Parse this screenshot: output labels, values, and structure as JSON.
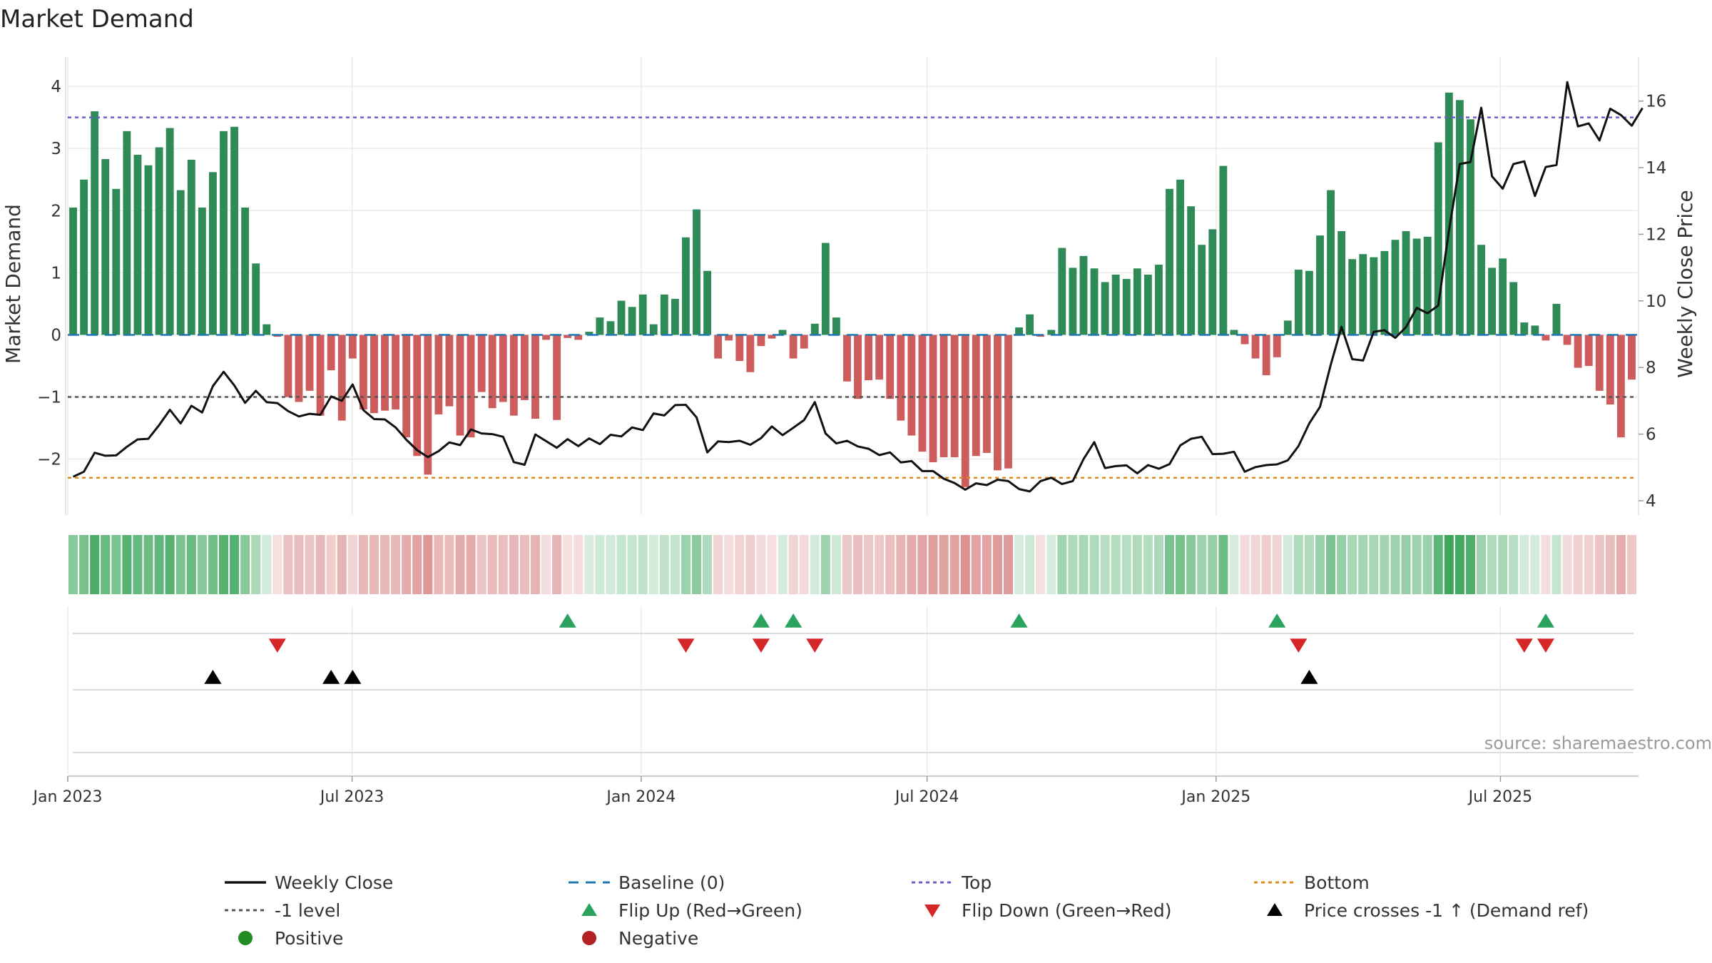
{
  "chart_data": {
    "type": "bar+line",
    "title": "Market Demand",
    "ylabel_left": "Market Demand",
    "ylabel_right": "Weekly Close Price",
    "source": "source: sharemaestro.com",
    "y_left": {
      "min": -2.9,
      "max": 4.3,
      "ticks": [
        4,
        3,
        2,
        1,
        0,
        -1,
        -2
      ],
      "tick_labels": [
        "4",
        "3",
        "2",
        "1",
        "0",
        "−1",
        "−2"
      ]
    },
    "y_right": {
      "min": 3.57,
      "max": 17.0,
      "ticks": [
        16,
        14,
        12,
        10,
        8,
        6,
        4
      ],
      "tick_labels": [
        "16",
        "14",
        "12",
        "10",
        "8",
        "6",
        "4"
      ]
    },
    "x_dates": {
      "start": "2023-01-01",
      "end": "2025-09-26"
    },
    "x_ticks": [
      {
        "label": "Jan 2023",
        "date": "2023-01-01"
      },
      {
        "label": "Jul 2023",
        "date": "2023-07-01"
      },
      {
        "label": "Jan 2024",
        "date": "2024-01-01"
      },
      {
        "label": "Jul 2024",
        "date": "2024-07-01"
      },
      {
        "label": "Jan 2025",
        "date": "2025-01-01"
      },
      {
        "label": "Jul 2025",
        "date": "2025-07-01"
      }
    ],
    "reference_lines": {
      "top": 3.5,
      "bottom": -2.3,
      "minus_one": -1,
      "baseline": 0
    },
    "demand": [
      2.05,
      2.5,
      3.6,
      2.83,
      2.35,
      3.28,
      2.9,
      2.73,
      3.02,
      3.33,
      2.33,
      2.82,
      2.05,
      2.62,
      3.28,
      3.35,
      2.05,
      1.15,
      0.17,
      -0.03,
      -1.0,
      -1.08,
      -0.9,
      -1.3,
      -0.57,
      -1.38,
      -0.38,
      -1.2,
      -1.26,
      -1.22,
      -1.2,
      -1.65,
      -1.95,
      -2.25,
      -1.28,
      -1.15,
      -1.62,
      -1.65,
      -0.92,
      -1.18,
      -1.08,
      -1.3,
      -1.05,
      -1.35,
      -0.08,
      -1.37,
      -0.05,
      -0.08,
      0.05,
      0.28,
      0.22,
      0.55,
      0.45,
      0.65,
      0.17,
      0.65,
      0.58,
      1.57,
      2.02,
      1.03,
      -0.38,
      -0.09,
      -0.42,
      -0.6,
      -0.18,
      -0.06,
      0.08,
      -0.38,
      -0.22,
      0.18,
      1.48,
      0.28,
      -0.75,
      -1.03,
      -0.73,
      -0.72,
      -1.03,
      -1.38,
      -1.62,
      -1.88,
      -2.05,
      -1.97,
      -1.97,
      -2.45,
      -1.95,
      -1.9,
      -2.18,
      -2.15,
      0.12,
      0.33,
      -0.03,
      0.08,
      1.4,
      1.08,
      1.27,
      1.07,
      0.85,
      0.97,
      0.9,
      1.07,
      0.97,
      1.13,
      2.35,
      2.5,
      2.07,
      1.45,
      1.7,
      2.72,
      0.08,
      -0.15,
      -0.38,
      -0.65,
      -0.36,
      0.23,
      1.05,
      1.03,
      1.6,
      2.33,
      1.67,
      1.22,
      1.3,
      1.25,
      1.35,
      1.53,
      1.67,
      1.55,
      1.58,
      3.1,
      3.9,
      3.78,
      3.47,
      1.45,
      1.08,
      1.23,
      0.85,
      0.2,
      0.15,
      -0.09,
      0.5,
      -0.16,
      -0.53,
      -0.5,
      -0.9,
      -1.12,
      -1.65,
      -0.72
    ],
    "weekly_close": [
      4.72,
      4.87,
      5.44,
      5.35,
      5.36,
      5.62,
      5.84,
      5.86,
      6.27,
      6.73,
      6.32,
      6.85,
      6.65,
      7.44,
      7.87,
      7.46,
      6.94,
      7.3,
      6.96,
      6.93,
      6.69,
      6.53,
      6.61,
      6.58,
      7.13,
      7.0,
      7.49,
      6.72,
      6.45,
      6.44,
      6.2,
      5.83,
      5.52,
      5.31,
      5.49,
      5.75,
      5.67,
      6.14,
      6.02,
      6.0,
      5.92,
      5.16,
      5.08,
      5.99,
      5.79,
      5.59,
      5.85,
      5.64,
      5.87,
      5.7,
      5.98,
      5.93,
      6.2,
      6.12,
      6.62,
      6.56,
      6.87,
      6.88,
      6.5,
      5.45,
      5.78,
      5.76,
      5.8,
      5.68,
      5.88,
      6.23,
      5.97,
      6.19,
      6.42,
      6.96,
      6.02,
      5.72,
      5.8,
      5.63,
      5.56,
      5.37,
      5.45,
      5.15,
      5.19,
      4.89,
      4.89,
      4.66,
      4.53,
      4.33,
      4.52,
      4.47,
      4.63,
      4.59,
      4.35,
      4.28,
      4.59,
      4.69,
      4.5,
      4.59,
      5.25,
      5.76,
      4.98,
      5.04,
      5.06,
      4.82,
      5.07,
      4.96,
      5.1,
      5.66,
      5.86,
      5.92,
      5.4,
      5.41,
      5.47,
      4.87,
      5.01,
      5.07,
      5.09,
      5.21,
      5.64,
      6.32,
      6.82,
      8.08,
      9.22,
      8.25,
      8.21,
      9.07,
      9.12,
      8.89,
      9.21,
      9.79,
      9.63,
      9.86,
      12.12,
      14.11,
      14.17,
      15.8,
      13.74,
      13.37,
      14.11,
      14.19,
      13.15,
      14.02,
      14.08,
      16.57,
      15.24,
      15.33,
      14.82,
      15.77,
      15.58,
      15.26,
      15.79
    ],
    "flip_up_weeks": [
      46,
      64,
      67,
      88,
      112,
      137
    ],
    "flip_down_weeks": [
      19,
      57,
      64,
      69,
      114,
      135,
      137
    ],
    "price_cross_weeks": [
      13,
      24,
      26,
      115
    ],
    "legend": [
      {
        "label": "Weekly Close",
        "symbol": "line",
        "color": "#111111"
      },
      {
        "label": "Baseline (0)",
        "symbol": "dash",
        "color": "#1f77b4"
      },
      {
        "label": "Top",
        "symbol": "dot",
        "color": "#6b5fcf"
      },
      {
        "label": "Bottom",
        "symbol": "dot",
        "color": "#e08a1e"
      },
      {
        "label": "-1 level",
        "symbol": "dot",
        "color": "#555555"
      },
      {
        "label": "Flip Up (Red→Green)",
        "symbol": "tri-up",
        "color": "#2ca25f"
      },
      {
        "label": "Flip Down (Green→Red)",
        "symbol": "tri-down",
        "color": "#d62728"
      },
      {
        "label": "Price crosses -1 ↑ (Demand ref)",
        "symbol": "tri-up",
        "color": "#000000"
      },
      {
        "label": "Positive",
        "symbol": "circle",
        "color": "#228b22"
      },
      {
        "label": "Negative",
        "symbol": "circle",
        "color": "#b22222"
      }
    ],
    "colors": {
      "positive": "#2e8b57",
      "negative": "#cd5c5c",
      "price": "#111111",
      "top": "#6b5fcf",
      "bottom": "#e08a1e",
      "minus_one": "#555555",
      "baseline": "#1f77b4",
      "flip_up": "#2ca25f",
      "flip_down": "#d62728",
      "cross": "#000000",
      "grid": "#ebebeb",
      "axis": "#cccccc"
    }
  }
}
